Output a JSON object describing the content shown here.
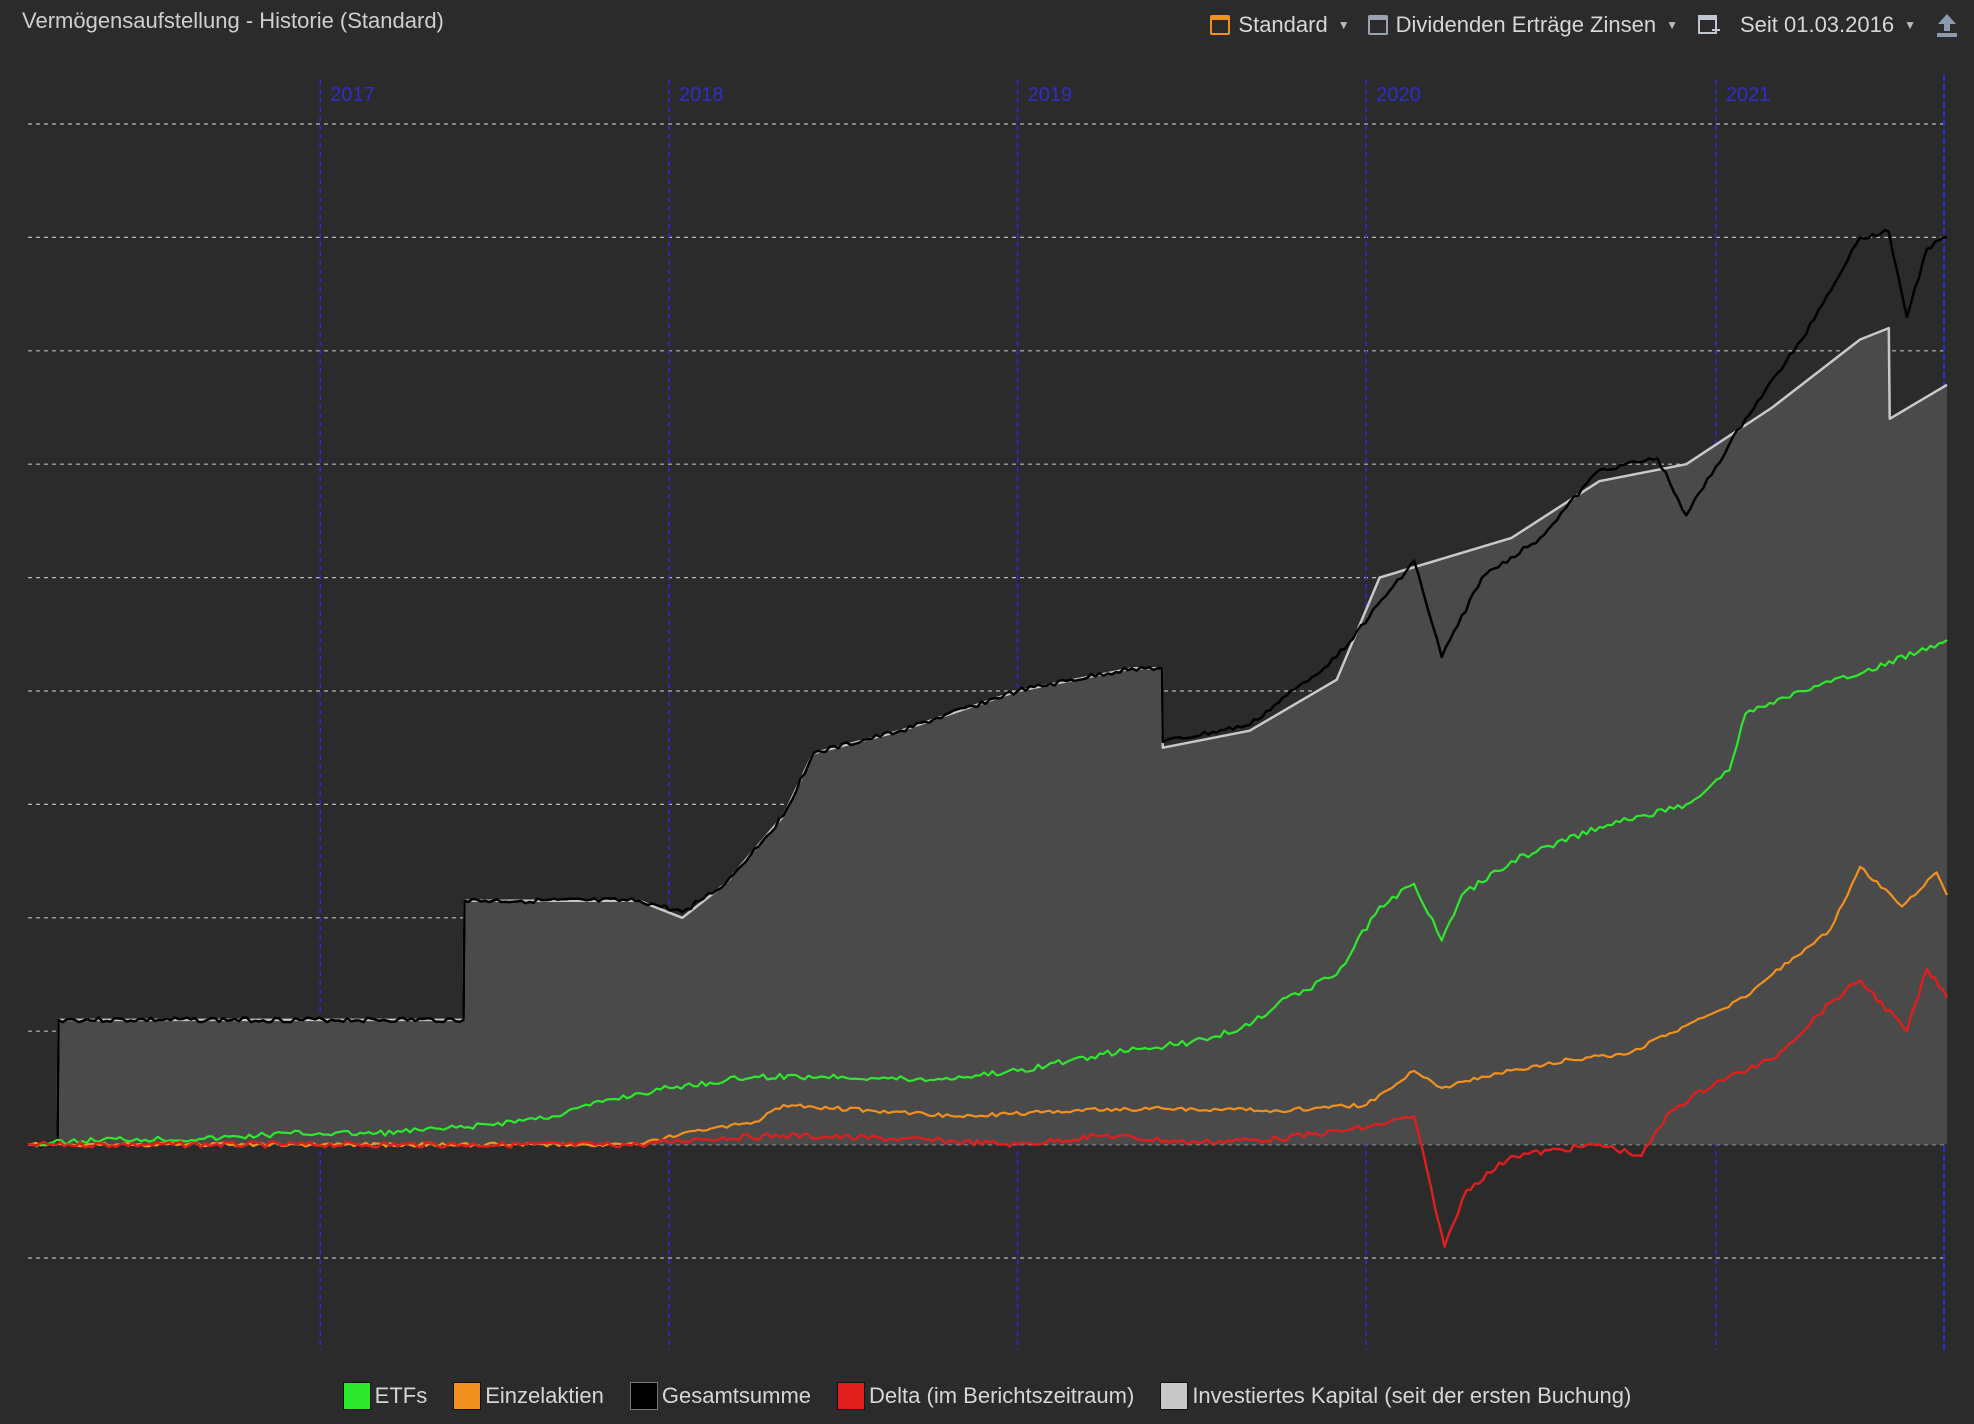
{
  "header": {
    "title": "Vermögensaufstellung - Historie (Standard)",
    "standard_label": "Standard",
    "dividends_label": "Dividenden Erträge Zinsen",
    "period_label": "Seit 01.03.2016"
  },
  "colors": {
    "background": "#2b2b2b",
    "grid": "#e6e6e6",
    "year_line": "#2b2bd6",
    "year_label": "#2f2fc8",
    "etfs": "#2ee82e",
    "einzelaktien": "#f2901e",
    "gesamtsumme": "#000000",
    "delta": "#e01e1e",
    "investiertes_kapital": "#c8c8c8",
    "invest_fill": "#4a4a4a",
    "standard_accent": "#f2901e"
  },
  "chart_data": {
    "type": "line",
    "title": "",
    "xlabel": "",
    "ylabel": "",
    "x_type": "date",
    "xlim": [
      "2016-03-01",
      "2021-09-01"
    ],
    "ylim": [
      -1,
      9
    ],
    "ytick_labels": "not shown",
    "grid": "horizontal dashed",
    "legend_position": "bottom-center",
    "year_ticks": [
      {
        "label": "2017",
        "date": "2017-01-01"
      },
      {
        "label": "2018",
        "date": "2018-01-01"
      },
      {
        "label": "2019",
        "date": "2019-01-01"
      },
      {
        "label": "2020",
        "date": "2020-01-01"
      },
      {
        "label": "2021",
        "date": "2021-01-01"
      }
    ],
    "series": [
      {
        "name": "ETFs",
        "key": "etfs",
        "points": [
          [
            "2016-03-01",
            0
          ],
          [
            "2016-06-01",
            0.05
          ],
          [
            "2016-09-01",
            0.05
          ],
          [
            "2016-12-01",
            0.1
          ],
          [
            "2017-03-01",
            0.1
          ],
          [
            "2017-06-01",
            0.15
          ],
          [
            "2017-09-01",
            0.25
          ],
          [
            "2017-11-01",
            0.4
          ],
          [
            "2018-01-01",
            0.5
          ],
          [
            "2018-04-01",
            0.6
          ],
          [
            "2018-07-01",
            0.6
          ],
          [
            "2018-10-01",
            0.57
          ],
          [
            "2019-01-01",
            0.65
          ],
          [
            "2019-04-01",
            0.8
          ],
          [
            "2019-07-01",
            0.9
          ],
          [
            "2019-09-01",
            1.05
          ],
          [
            "2019-10-01",
            1.25
          ],
          [
            "2019-12-01",
            1.5
          ],
          [
            "2020-01-15",
            2.1
          ],
          [
            "2020-02-20",
            2.3
          ],
          [
            "2020-03-20",
            1.8
          ],
          [
            "2020-04-10",
            2.2
          ],
          [
            "2020-06-01",
            2.5
          ],
          [
            "2020-09-01",
            2.8
          ],
          [
            "2020-12-01",
            3.0
          ],
          [
            "2021-01-15",
            3.3
          ],
          [
            "2021-02-01",
            3.8
          ],
          [
            "2021-04-01",
            4.0
          ],
          [
            "2021-06-01",
            4.15
          ],
          [
            "2021-08-31",
            4.45
          ]
        ]
      },
      {
        "name": "Einzelaktien",
        "key": "einzelaktien",
        "points": [
          [
            "2016-03-01",
            0
          ],
          [
            "2017-12-01",
            0
          ],
          [
            "2018-01-15",
            0.1
          ],
          [
            "2018-04-01",
            0.2
          ],
          [
            "2018-05-01",
            0.35
          ],
          [
            "2018-08-01",
            0.3
          ],
          [
            "2018-11-01",
            0.25
          ],
          [
            "2019-03-01",
            0.3
          ],
          [
            "2019-06-01",
            0.32
          ],
          [
            "2019-10-01",
            0.3
          ],
          [
            "2020-01-01",
            0.35
          ],
          [
            "2020-02-20",
            0.65
          ],
          [
            "2020-03-20",
            0.5
          ],
          [
            "2020-05-01",
            0.6
          ],
          [
            "2020-08-01",
            0.75
          ],
          [
            "2020-10-01",
            0.8
          ],
          [
            "2020-12-01",
            1.05
          ],
          [
            "2021-02-01",
            1.3
          ],
          [
            "2021-03-01",
            1.5
          ],
          [
            "2021-05-01",
            1.9
          ],
          [
            "2021-06-01",
            2.45
          ],
          [
            "2021-07-15",
            2.1
          ],
          [
            "2021-08-20",
            2.4
          ],
          [
            "2021-08-31",
            2.2
          ]
        ]
      },
      {
        "name": "Gesamtsumme",
        "key": "gesamtsumme",
        "points": [
          [
            "2016-03-01",
            0
          ],
          [
            "2016-04-01",
            0
          ],
          [
            "2016-04-02",
            1.1
          ],
          [
            "2017-05-31",
            1.1
          ],
          [
            "2017-06-01",
            2.15
          ],
          [
            "2017-12-01",
            2.15
          ],
          [
            "2018-01-15",
            2.05
          ],
          [
            "2018-03-01",
            2.3
          ],
          [
            "2018-05-01",
            2.9
          ],
          [
            "2018-06-01",
            3.45
          ],
          [
            "2018-09-01",
            3.65
          ],
          [
            "2019-01-01",
            4.0
          ],
          [
            "2019-05-01",
            4.2
          ],
          [
            "2019-06-01",
            4.2
          ],
          [
            "2019-06-02",
            3.55
          ],
          [
            "2019-09-01",
            3.7
          ],
          [
            "2019-12-01",
            4.3
          ],
          [
            "2020-02-20",
            5.15
          ],
          [
            "2020-03-20",
            4.3
          ],
          [
            "2020-05-01",
            5.0
          ],
          [
            "2020-07-01",
            5.35
          ],
          [
            "2020-09-01",
            5.95
          ],
          [
            "2020-11-01",
            6.05
          ],
          [
            "2020-12-01",
            5.55
          ],
          [
            "2021-02-01",
            6.4
          ],
          [
            "2021-04-01",
            7.1
          ],
          [
            "2021-06-01",
            8.0
          ],
          [
            "2021-07-01",
            8.05
          ],
          [
            "2021-07-20",
            7.3
          ],
          [
            "2021-08-10",
            7.9
          ],
          [
            "2021-08-31",
            8.0
          ]
        ]
      },
      {
        "name": "Delta (im Berichtszeitraum)",
        "key": "delta",
        "points": [
          [
            "2016-03-01",
            0
          ],
          [
            "2017-12-01",
            0
          ],
          [
            "2018-02-01",
            0.05
          ],
          [
            "2018-05-01",
            0.08
          ],
          [
            "2018-09-01",
            0.05
          ],
          [
            "2019-01-01",
            0.0
          ],
          [
            "2019-04-01",
            0.08
          ],
          [
            "2019-07-01",
            0.02
          ],
          [
            "2019-10-01",
            0.05
          ],
          [
            "2020-01-01",
            0.15
          ],
          [
            "2020-02-20",
            0.25
          ],
          [
            "2020-03-23",
            -0.9
          ],
          [
            "2020-04-15",
            -0.4
          ],
          [
            "2020-06-01",
            -0.1
          ],
          [
            "2020-09-01",
            0.0
          ],
          [
            "2020-10-15",
            -0.1
          ],
          [
            "2020-11-15",
            0.3
          ],
          [
            "2021-01-01",
            0.55
          ],
          [
            "2021-03-01",
            0.75
          ],
          [
            "2021-05-01",
            1.25
          ],
          [
            "2021-06-01",
            1.45
          ],
          [
            "2021-07-20",
            1.0
          ],
          [
            "2021-08-10",
            1.55
          ],
          [
            "2021-08-31",
            1.3
          ]
        ]
      },
      {
        "name": "Investiertes Kapital (seit der ersten Buchung)",
        "key": "investiertes_kapital",
        "points": [
          [
            "2016-03-01",
            0
          ],
          [
            "2016-04-01",
            0
          ],
          [
            "2016-04-02",
            1.1
          ],
          [
            "2017-05-31",
            1.1
          ],
          [
            "2017-06-01",
            2.15
          ],
          [
            "2017-12-01",
            2.15
          ],
          [
            "2018-01-15",
            2.0
          ],
          [
            "2018-03-01",
            2.3
          ],
          [
            "2018-05-01",
            2.9
          ],
          [
            "2018-06-01",
            3.45
          ],
          [
            "2018-09-01",
            3.65
          ],
          [
            "2019-01-01",
            4.0
          ],
          [
            "2019-05-01",
            4.2
          ],
          [
            "2019-06-01",
            4.2
          ],
          [
            "2019-06-02",
            3.5
          ],
          [
            "2019-09-01",
            3.65
          ],
          [
            "2019-12-01",
            4.1
          ],
          [
            "2020-01-15",
            5.0
          ],
          [
            "2020-06-01",
            5.35
          ],
          [
            "2020-09-01",
            5.85
          ],
          [
            "2020-12-01",
            6.0
          ],
          [
            "2021-03-01",
            6.5
          ],
          [
            "2021-06-01",
            7.1
          ],
          [
            "2021-07-01",
            7.2
          ],
          [
            "2021-07-02",
            6.4
          ],
          [
            "2021-08-31",
            6.7
          ]
        ]
      }
    ]
  },
  "legend": {
    "etfs": "ETFs",
    "einzelaktien": "Einzelaktien",
    "gesamtsumme": "Gesamtsumme",
    "delta": "Delta (im Berichtszeitraum)",
    "investiertes_kapital": "Investiertes Kapital (seit der ersten Buchung)"
  },
  "icons": [
    "dropdown-caret-icon",
    "add-chart-icon",
    "export-icon"
  ]
}
